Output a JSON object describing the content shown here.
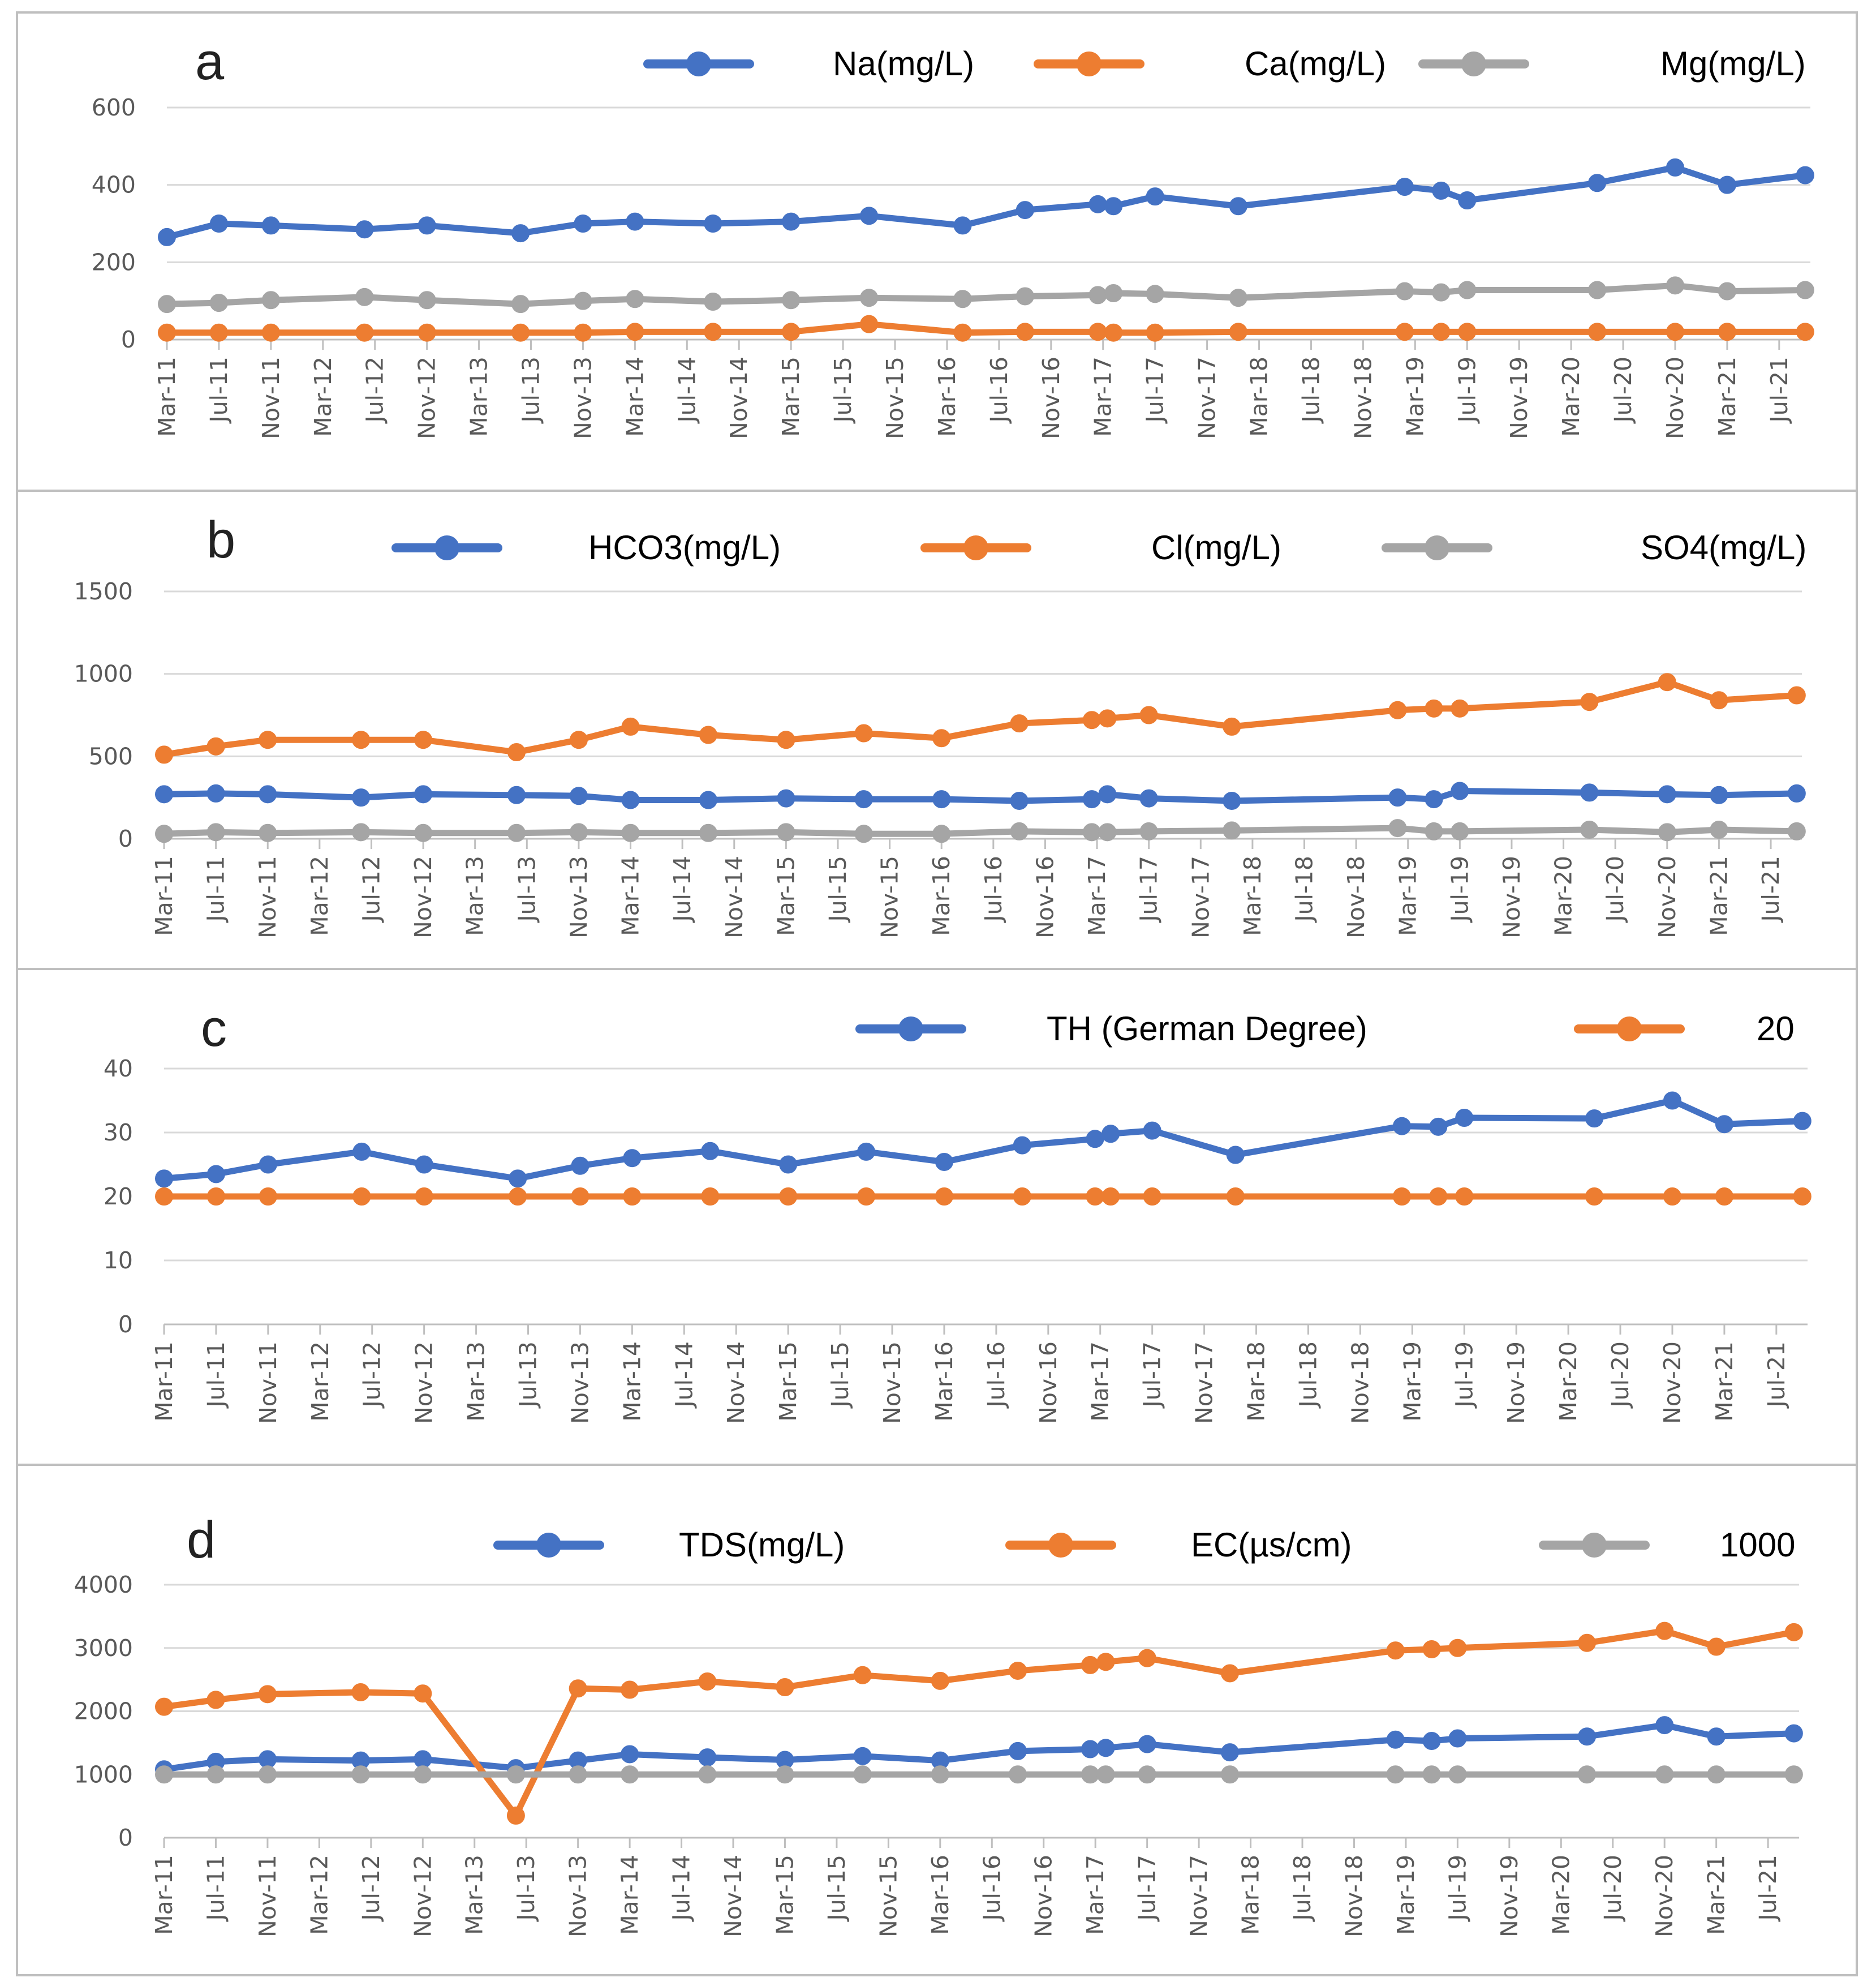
{
  "colors": {
    "blue": "#4472c4",
    "orange": "#ed7d31",
    "gray": "#a5a5a5",
    "grid": "#d9d9d9",
    "axis": "#bfbfbf"
  },
  "chart_data": [
    {
      "panel": "a",
      "type": "line",
      "x_tick_labels": [
        "Mar-11",
        "Jul-11",
        "Nov-11",
        "Mar-12",
        "Jul-12",
        "Nov-12",
        "Mar-13",
        "Jul-13",
        "Nov-13",
        "Mar-14",
        "Jul-14",
        "Nov-14",
        "Mar-15",
        "Jul-15",
        "Nov-15",
        "Mar-16",
        "Jul-16",
        "Nov-16",
        "Mar-17",
        "Jul-17",
        "Nov-17",
        "Mar-18",
        "Jul-18",
        "Nov-18",
        "Mar-19",
        "Jul-19",
        "Nov-19",
        "Mar-20",
        "Jul-20",
        "Nov-20",
        "Mar-21",
        "Jul-21"
      ],
      "x": [
        0,
        1,
        2,
        3.8,
        5,
        6.8,
        8,
        9,
        10.5,
        12,
        13.5,
        15.3,
        16.5,
        17.9,
        18.2,
        19,
        20.6,
        23.8,
        24.5,
        25,
        27.5,
        29,
        30,
        31.5
      ],
      "y_ticks": [
        0,
        200,
        400,
        600
      ],
      "ylim": [
        0,
        600
      ],
      "series": [
        {
          "name": "Na(mg/L)",
          "color": "blue",
          "values": [
            265,
            300,
            295,
            285,
            295,
            275,
            300,
            305,
            300,
            305,
            320,
            295,
            335,
            350,
            345,
            370,
            345,
            395,
            385,
            360,
            405,
            445,
            400,
            425
          ]
        },
        {
          "name": "Ca(mg/L)",
          "color": "orange",
          "values": [
            18,
            18,
            18,
            18,
            18,
            18,
            18,
            20,
            20,
            20,
            40,
            18,
            20,
            20,
            18,
            18,
            20,
            20,
            20,
            20,
            20,
            20,
            20,
            20
          ]
        },
        {
          "name": "Mg(mg/L)",
          "color": "gray",
          "values": [
            92,
            95,
            102,
            110,
            102,
            92,
            100,
            105,
            98,
            102,
            108,
            105,
            112,
            115,
            120,
            118,
            108,
            125,
            122,
            128,
            128,
            140,
            125,
            128
          ]
        }
      ]
    },
    {
      "panel": "b",
      "type": "line",
      "x_tick_labels": [
        "Mar-11",
        "Jul-11",
        "Nov-11",
        "Mar-12",
        "Jul-12",
        "Nov-12",
        "Mar-13",
        "Jul-13",
        "Nov-13",
        "Mar-14",
        "Jul-14",
        "Nov-14",
        "Mar-15",
        "Jul-15",
        "Nov-15",
        "Mar-16",
        "Jul-16",
        "Nov-16",
        "Mar-17",
        "Jul-17",
        "Nov-17",
        "Mar-18",
        "Jul-18",
        "Nov-18",
        "Mar-19",
        "Jul-19",
        "Nov-19",
        "Mar-20",
        "Jul-20",
        "Nov-20",
        "Mar-21",
        "Jul-21"
      ],
      "x": [
        0,
        1,
        2,
        3.8,
        5,
        6.8,
        8,
        9,
        10.5,
        12,
        13.5,
        15,
        16.5,
        17.9,
        18.2,
        19,
        20.6,
        23.8,
        24.5,
        25,
        27.5,
        29,
        30,
        31.5
      ],
      "y_ticks": [
        0,
        500,
        1000,
        1500
      ],
      "ylim": [
        0,
        1500
      ],
      "series": [
        {
          "name": "HCO3(mg/L)",
          "color": "blue",
          "values": [
            270,
            275,
            270,
            250,
            270,
            265,
            260,
            235,
            235,
            245,
            240,
            240,
            230,
            240,
            270,
            245,
            230,
            250,
            240,
            290,
            280,
            270,
            265,
            275
          ]
        },
        {
          "name": "Cl(mg/L)",
          "color": "orange",
          "values": [
            510,
            560,
            600,
            600,
            600,
            525,
            600,
            680,
            630,
            600,
            640,
            610,
            700,
            720,
            730,
            750,
            680,
            780,
            790,
            790,
            830,
            950,
            840,
            870
          ]
        },
        {
          "name": "SO4(mg/L)",
          "color": "gray",
          "values": [
            30,
            40,
            35,
            40,
            35,
            35,
            40,
            35,
            35,
            40,
            30,
            30,
            45,
            40,
            40,
            45,
            50,
            65,
            45,
            45,
            55,
            40,
            55,
            45
          ]
        }
      ]
    },
    {
      "panel": "c",
      "type": "line",
      "x_tick_labels": [
        "Mar-11",
        "Jul-11",
        "Nov-11",
        "Mar-12",
        "Jul-12",
        "Nov-12",
        "Mar-13",
        "Jul-13",
        "Nov-13",
        "Mar-14",
        "Jul-14",
        "Nov-14",
        "Mar-15",
        "Jul-15",
        "Nov-15",
        "Mar-16",
        "Jul-16",
        "Nov-16",
        "Mar-17",
        "Jul-17",
        "Nov-17",
        "Mar-18",
        "Jul-18",
        "Nov-18",
        "Mar-19",
        "Jul-19",
        "Nov-19",
        "Mar-20",
        "Jul-20",
        "Nov-20",
        "Mar-21",
        "Jul-21"
      ],
      "x": [
        0,
        1,
        2,
        3.8,
        5,
        6.8,
        8,
        9,
        10.5,
        12,
        13.5,
        15,
        16.5,
        17.9,
        18.2,
        19,
        20.6,
        23.8,
        24.5,
        25,
        27.5,
        29,
        30,
        31.5
      ],
      "y_ticks": [
        0,
        10,
        20,
        30,
        40
      ],
      "ylim": [
        0,
        40
      ],
      "series": [
        {
          "name": "TH (German Degree)",
          "color": "blue",
          "values": [
            22.8,
            23.5,
            25,
            27,
            25,
            22.8,
            24.8,
            26,
            27.1,
            25,
            27,
            25.4,
            28,
            29,
            29.8,
            30.3,
            26.5,
            31,
            30.9,
            32.3,
            32.2,
            35,
            31.3,
            31.8
          ]
        },
        {
          "name": "20",
          "color": "orange",
          "values": [
            20,
            20,
            20,
            20,
            20,
            20,
            20,
            20,
            20,
            20,
            20,
            20,
            20,
            20,
            20,
            20,
            20,
            20,
            20,
            20,
            20,
            20,
            20,
            20
          ]
        }
      ]
    },
    {
      "panel": "d",
      "type": "line",
      "x_tick_labels": [
        "Mar-11",
        "Jul-11",
        "Nov-11",
        "Mar-12",
        "Jul-12",
        "Nov-12",
        "Mar-13",
        "Jul-13",
        "Nov-13",
        "Mar-14",
        "Jul-14",
        "Nov-14",
        "Mar-15",
        "Jul-15",
        "Nov-15",
        "Mar-16",
        "Jul-16",
        "Nov-16",
        "Mar-17",
        "Jul-17",
        "Nov-17",
        "Mar-18",
        "Jul-18",
        "Nov-18",
        "Mar-19",
        "Jul-19",
        "Nov-19",
        "Mar-20",
        "Jul-20",
        "Nov-20",
        "Mar-21",
        "Jul-21"
      ],
      "x": [
        0,
        1,
        2,
        3.8,
        5,
        6.8,
        8,
        9,
        10.5,
        12,
        13.5,
        15,
        16.5,
        17.9,
        18.2,
        19,
        20.6,
        23.8,
        24.5,
        25,
        27.5,
        29,
        30,
        31.5
      ],
      "y_ticks": [
        0,
        1000,
        2000,
        3000,
        4000
      ],
      "ylim": [
        0,
        4000
      ],
      "series": [
        {
          "name": "TDS(mg/L)",
          "color": "blue",
          "values": [
            1080,
            1200,
            1240,
            1220,
            1240,
            1100,
            1220,
            1320,
            1270,
            1230,
            1290,
            1220,
            1370,
            1400,
            1420,
            1480,
            1350,
            1550,
            1530,
            1570,
            1600,
            1780,
            1600,
            1650
          ]
        },
        {
          "name": "EC(µs/cm)",
          "color": "orange",
          "values": [
            2070,
            2180,
            2270,
            2300,
            2280,
            350,
            2360,
            2340,
            2470,
            2380,
            2570,
            2480,
            2640,
            2730,
            2780,
            2840,
            2600,
            2960,
            2980,
            3000,
            3080,
            3270,
            3020,
            3250
          ]
        },
        {
          "name": "1000",
          "color": "gray",
          "values": [
            1000,
            1000,
            1000,
            1000,
            1000,
            1000,
            1000,
            1000,
            1000,
            1000,
            1000,
            1000,
            1000,
            1000,
            1000,
            1000,
            1000,
            1000,
            1000,
            1000,
            1000,
            1000,
            1000,
            1000
          ]
        }
      ]
    }
  ]
}
